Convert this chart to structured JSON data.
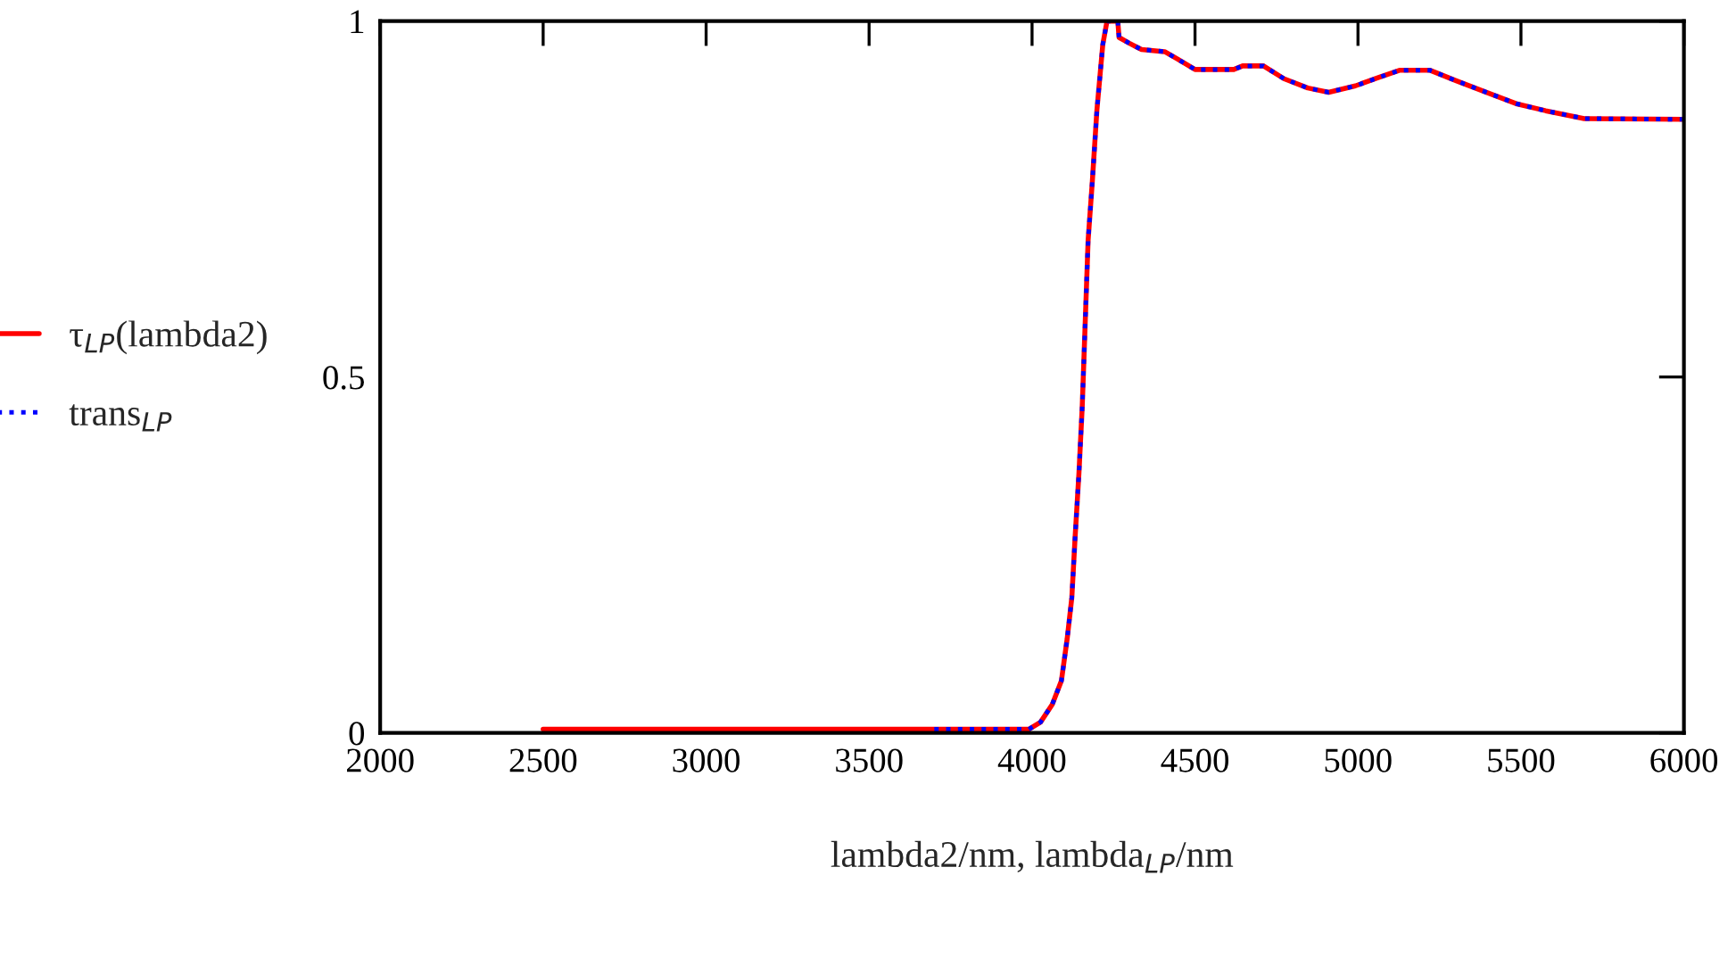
{
  "chart_data": {
    "type": "line",
    "xlabel": "lambda2/nm, lambda$_{LP}$/nm",
    "xlim": [
      2000,
      6000
    ],
    "xticks": [
      2000,
      2500,
      3000,
      3500,
      4000,
      4500,
      5000,
      5500,
      6000
    ],
    "ylim": [
      0,
      1
    ],
    "yticks": [
      0,
      0.5,
      1
    ],
    "grid": false,
    "legend": "left",
    "marker": "none",
    "series": [
      {
        "name": "τ$_{LP}$(lambda2)",
        "color": "#ff0000",
        "line_style": "solid",
        "x": [
          2500,
          3990,
          4026,
          4062,
          4090,
          4108,
          4122,
          4132,
          4144,
          4154,
          4163,
          4172,
          4185,
          4199,
          4217,
          4230,
          4236,
          4263,
          4267,
          4298,
          4336,
          4407,
          4445,
          4500,
          4619,
          4646,
          4710,
          4773,
          4846,
          4910,
          4992,
          5065,
          5129,
          5220,
          5302,
          5393,
          5485,
          5576,
          5694,
          5995
        ],
        "values": [
          0.005,
          0.005,
          0.015,
          0.04,
          0.073,
          0.133,
          0.19,
          0.274,
          0.366,
          0.459,
          0.575,
          0.692,
          0.775,
          0.875,
          0.967,
          1.0,
          1.0,
          1.0,
          0.977,
          0.969,
          0.96,
          0.957,
          0.947,
          0.932,
          0.932,
          0.937,
          0.937,
          0.919,
          0.906,
          0.9,
          0.909,
          0.921,
          0.931,
          0.931,
          0.916,
          0.9,
          0.884,
          0.874,
          0.863,
          0.862
        ]
      },
      {
        "name": "trans$_{LP}$",
        "color": "#0000ff",
        "line_style": "dotted",
        "x": [
          3700,
          3990,
          4026,
          4062,
          4090,
          4108,
          4122,
          4132,
          4144,
          4154,
          4163,
          4172,
          4185,
          4199,
          4217,
          4230,
          4236,
          4263,
          4267,
          4298,
          4336,
          4407,
          4445,
          4500,
          4619,
          4646,
          4710,
          4773,
          4846,
          4910,
          4992,
          5065,
          5129,
          5220,
          5302,
          5393,
          5485,
          5576,
          5694,
          5995
        ],
        "values": [
          0.005,
          0.005,
          0.015,
          0.04,
          0.073,
          0.133,
          0.19,
          0.274,
          0.366,
          0.459,
          0.575,
          0.692,
          0.775,
          0.875,
          0.967,
          1.0,
          1.0,
          1.0,
          0.977,
          0.969,
          0.96,
          0.957,
          0.947,
          0.932,
          0.932,
          0.937,
          0.937,
          0.919,
          0.906,
          0.9,
          0.909,
          0.921,
          0.931,
          0.931,
          0.916,
          0.9,
          0.884,
          0.874,
          0.863,
          0.862
        ]
      }
    ]
  }
}
